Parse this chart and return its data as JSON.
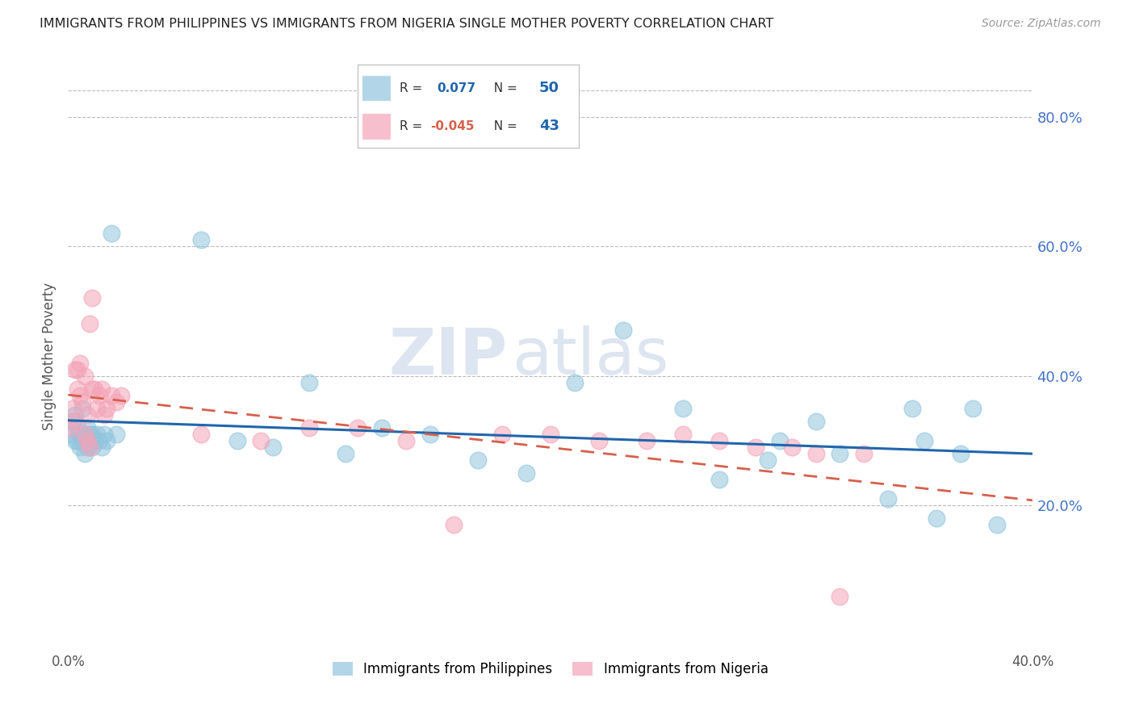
{
  "title": "IMMIGRANTS FROM PHILIPPINES VS IMMIGRANTS FROM NIGERIA SINGLE MOTHER POVERTY CORRELATION CHART",
  "source": "Source: ZipAtlas.com",
  "ylabel": "Single Mother Poverty",
  "xlim": [
    0.0,
    0.4
  ],
  "ylim": [
    -0.02,
    0.88
  ],
  "xticks": [
    0.0,
    0.05,
    0.1,
    0.15,
    0.2,
    0.25,
    0.3,
    0.35,
    0.4
  ],
  "xtick_labels": [
    "0.0%",
    "",
    "",
    "",
    "",
    "",
    "",
    "",
    "40.0%"
  ],
  "yticks_right": [
    0.2,
    0.4,
    0.6,
    0.8
  ],
  "philippines_R": 0.077,
  "philippines_N": 50,
  "nigeria_R": -0.045,
  "nigeria_N": 43,
  "philippines_color": "#92c5de",
  "nigeria_color": "#f4a4b8",
  "philippines_line_color": "#2166ac",
  "nigeria_line_color": "#d6604d",
  "background_color": "#ffffff",
  "grid_color": "#bbbbbb",
  "watermark_zip": "ZIP",
  "watermark_atlas": "atlas",
  "title_color": "#222222",
  "axis_label_color": "#555555",
  "right_tick_color": "#4472c4",
  "philippines_x": [
    0.001,
    0.002,
    0.003,
    0.003,
    0.004,
    0.004,
    0.005,
    0.005,
    0.006,
    0.006,
    0.007,
    0.007,
    0.008,
    0.008,
    0.009,
    0.009,
    0.01,
    0.01,
    0.011,
    0.012,
    0.013,
    0.014,
    0.015,
    0.016,
    0.018,
    0.02,
    0.055,
    0.07,
    0.085,
    0.1,
    0.115,
    0.13,
    0.15,
    0.17,
    0.19,
    0.21,
    0.23,
    0.255,
    0.27,
    0.29,
    0.295,
    0.31,
    0.32,
    0.34,
    0.35,
    0.355,
    0.36,
    0.37,
    0.375,
    0.385
  ],
  "philippines_y": [
    0.31,
    0.33,
    0.3,
    0.34,
    0.3,
    0.32,
    0.31,
    0.29,
    0.3,
    0.35,
    0.31,
    0.28,
    0.32,
    0.29,
    0.31,
    0.3,
    0.31,
    0.29,
    0.3,
    0.31,
    0.3,
    0.29,
    0.31,
    0.3,
    0.62,
    0.31,
    0.61,
    0.3,
    0.29,
    0.39,
    0.28,
    0.32,
    0.31,
    0.27,
    0.25,
    0.39,
    0.47,
    0.35,
    0.24,
    0.27,
    0.3,
    0.33,
    0.28,
    0.21,
    0.35,
    0.3,
    0.18,
    0.28,
    0.35,
    0.17
  ],
  "nigeria_x": [
    0.001,
    0.002,
    0.003,
    0.003,
    0.004,
    0.004,
    0.005,
    0.005,
    0.006,
    0.007,
    0.007,
    0.008,
    0.008,
    0.009,
    0.009,
    0.01,
    0.01,
    0.011,
    0.012,
    0.013,
    0.014,
    0.015,
    0.016,
    0.018,
    0.02,
    0.022,
    0.055,
    0.08,
    0.1,
    0.12,
    0.14,
    0.16,
    0.18,
    0.2,
    0.22,
    0.24,
    0.255,
    0.27,
    0.285,
    0.3,
    0.31,
    0.32,
    0.33
  ],
  "nigeria_y": [
    0.32,
    0.35,
    0.33,
    0.41,
    0.38,
    0.41,
    0.37,
    0.42,
    0.36,
    0.4,
    0.31,
    0.34,
    0.3,
    0.29,
    0.48,
    0.52,
    0.38,
    0.38,
    0.35,
    0.37,
    0.38,
    0.34,
    0.35,
    0.37,
    0.36,
    0.37,
    0.31,
    0.3,
    0.32,
    0.32,
    0.3,
    0.17,
    0.31,
    0.31,
    0.3,
    0.3,
    0.31,
    0.3,
    0.29,
    0.29,
    0.28,
    0.06,
    0.28
  ]
}
